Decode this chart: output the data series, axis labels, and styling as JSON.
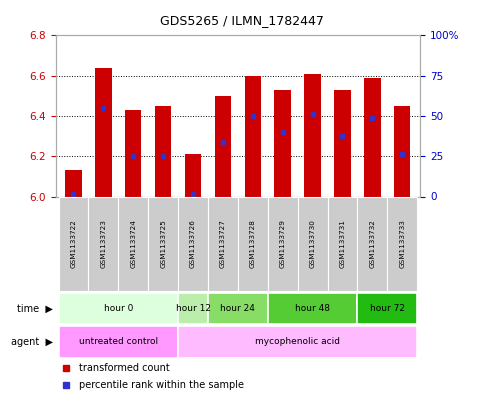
{
  "title": "GDS5265 / ILMN_1782447",
  "samples": [
    "GSM1133722",
    "GSM1133723",
    "GSM1133724",
    "GSM1133725",
    "GSM1133726",
    "GSM1133727",
    "GSM1133728",
    "GSM1133729",
    "GSM1133730",
    "GSM1133731",
    "GSM1133732",
    "GSM1133733"
  ],
  "bar_top": [
    6.13,
    6.64,
    6.43,
    6.45,
    6.21,
    6.5,
    6.6,
    6.53,
    6.61,
    6.53,
    6.59,
    6.45
  ],
  "bar_bottom": 6.0,
  "percentile_values": [
    6.01,
    6.44,
    6.2,
    6.2,
    6.01,
    6.27,
    6.4,
    6.32,
    6.41,
    6.3,
    6.39,
    6.21
  ],
  "ylim_left": [
    6.0,
    6.8
  ],
  "ylim_right": [
    0,
    100
  ],
  "yticks_left": [
    6.0,
    6.2,
    6.4,
    6.6,
    6.8
  ],
  "yticks_right": [
    0,
    25,
    50,
    75,
    100
  ],
  "ytick_labels_right": [
    "0",
    "25",
    "50",
    "75",
    "100%"
  ],
  "bar_color": "#cc0000",
  "percentile_color": "#3333cc",
  "time_groups": [
    {
      "label": "hour 0",
      "start": 0,
      "end": 3,
      "color": "#ddffdd"
    },
    {
      "label": "hour 12",
      "start": 4,
      "end": 4,
      "color": "#bbeeaa"
    },
    {
      "label": "hour 24",
      "start": 5,
      "end": 6,
      "color": "#88dd66"
    },
    {
      "label": "hour 48",
      "start": 7,
      "end": 9,
      "color": "#55cc33"
    },
    {
      "label": "hour 72",
      "start": 10,
      "end": 11,
      "color": "#22bb11"
    }
  ],
  "agent_groups": [
    {
      "label": "untreated control",
      "start": 0,
      "end": 3,
      "color": "#ff99ff"
    },
    {
      "label": "mycophenolic acid",
      "start": 4,
      "end": 11,
      "color": "#ffbbff"
    }
  ],
  "legend_items": [
    {
      "label": "transformed count",
      "color": "#cc0000"
    },
    {
      "label": "percentile rank within the sample",
      "color": "#3333cc"
    }
  ],
  "bg_color": "#ffffff",
  "grid_color": "#000000",
  "label_color_left": "#cc0000",
  "label_color_right": "#0000cc",
  "bar_width": 0.55,
  "sample_cell_color": "#cccccc"
}
